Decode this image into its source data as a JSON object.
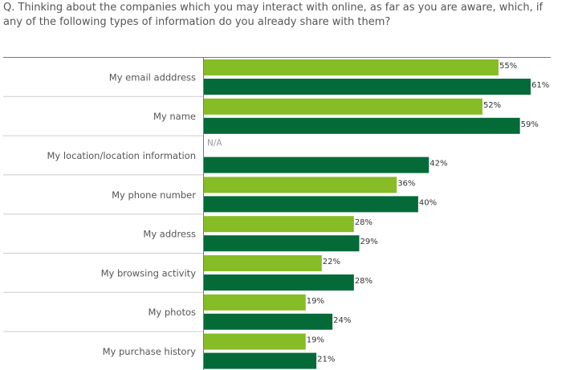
{
  "question": "Q. Thinking about the companies which you may interact with online, as far as you are aware, which, if any of the following types of information do you already share with them?",
  "colors": {
    "series1": "#86bc25",
    "series2": "#046a38"
  },
  "chart_data": {
    "type": "bar",
    "orientation": "horizontal",
    "categories": [
      "My email adddress",
      "My name",
      "My location/location information",
      "My phone number",
      "My address",
      "My browsing activity",
      "My photos",
      "My purchase history"
    ],
    "series": [
      {
        "values": [
          55,
          52,
          null,
          36,
          28,
          22,
          19,
          19
        ],
        "labels": [
          "55%",
          "52%",
          "N/A",
          "36%",
          "28%",
          "22%",
          "19%",
          "19%"
        ]
      },
      {
        "values": [
          61,
          59,
          42,
          40,
          29,
          28,
          24,
          21
        ],
        "labels": [
          "61%",
          "59%",
          "42%",
          "40%",
          "29%",
          "28%",
          "24%",
          "21%"
        ]
      }
    ],
    "xlim": [
      0,
      61
    ],
    "legend": "none"
  }
}
